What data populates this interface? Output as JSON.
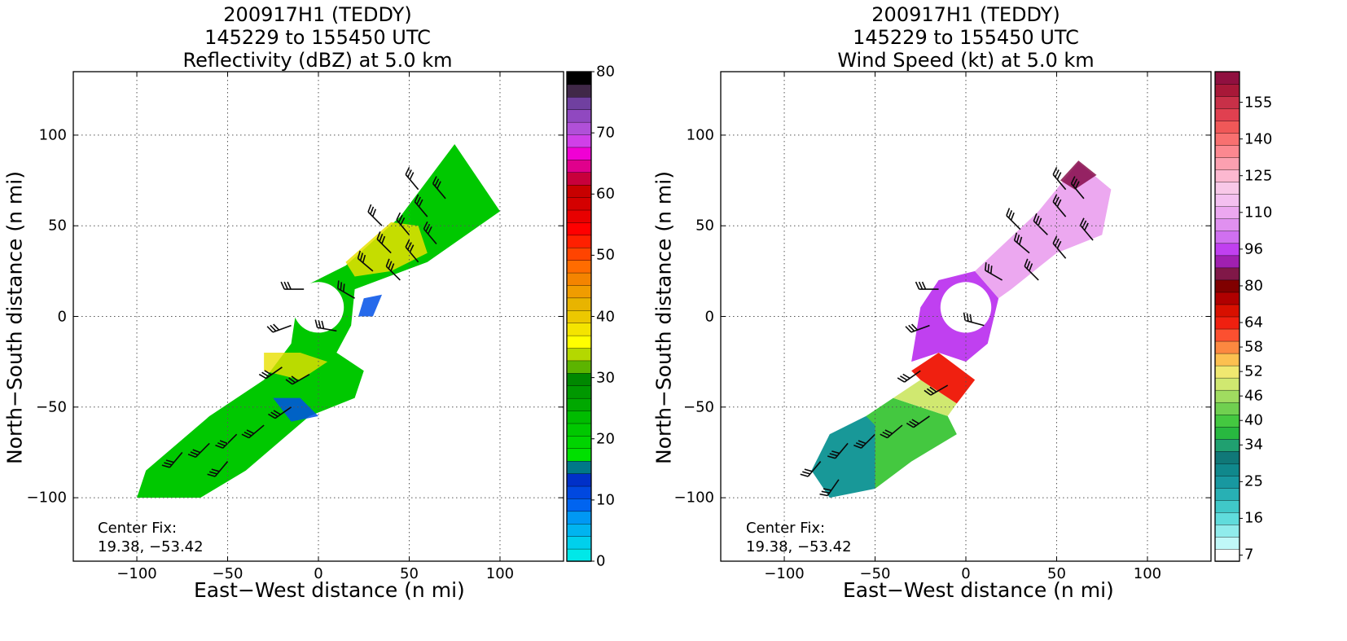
{
  "chart_data": [
    {
      "type": "heatmap",
      "title": [
        "200917H1 (TEDDY)",
        "145229 to 155450 UTC",
        "Reflectivity (dBZ) at 5.0 km"
      ],
      "xlabel": "East-West distance (n mi)",
      "ylabel": "North-South distance (n mi)",
      "xlim": [
        -135,
        135
      ],
      "ylim": [
        -135,
        135
      ],
      "xticks": [
        -100,
        -50,
        0,
        50,
        100
      ],
      "yticks": [
        -100,
        -50,
        0,
        50,
        100
      ],
      "grid": true,
      "annotation": [
        "Center Fix:",
        "19.38, -53.42"
      ],
      "colorbar": {
        "range": [
          0,
          80
        ],
        "tick_values": [
          0,
          10,
          20,
          30,
          40,
          50,
          60,
          70,
          80
        ],
        "tick_labels": [
          "0",
          "10",
          "20",
          "30",
          "40",
          "50",
          "60",
          "70",
          "80"
        ],
        "colors": [
          "#00e8e8",
          "#00d0ec",
          "#00b4f0",
          "#0098f4",
          "#0064f0",
          "#0048e0",
          "#0030c8",
          "#007888",
          "#00e000",
          "#00d400",
          "#00c800",
          "#00bc00",
          "#00a800",
          "#009800",
          "#008800",
          "#5cb400",
          "#b4d800",
          "#ffff00",
          "#f4e400",
          "#ecc800",
          "#e8b400",
          "#f09c00",
          "#f48400",
          "#ff6c00",
          "#ff4400",
          "#ff2000",
          "#ff0000",
          "#e80000",
          "#d40000",
          "#c80000",
          "#c8003c",
          "#e0008c",
          "#f000d4",
          "#d040e8",
          "#b050d8",
          "#9048c0",
          "#7040a0",
          "#402848",
          "#000000"
        ]
      },
      "annotation_colors": {
        "arm": "#0a0a0a"
      }
    },
    {
      "type": "heatmap",
      "title": [
        "200917H1 (TEDDY)",
        "145229 to 155450 UTC",
        "Wind Speed (kt) at 5.0 km"
      ],
      "xlabel": "East-West distance (n mi)",
      "ylabel": "North-South distance (n mi)",
      "xlim": [
        -135,
        135
      ],
      "ylim": [
        -135,
        135
      ],
      "xticks": [
        -100,
        -50,
        0,
        50,
        100
      ],
      "yticks": [
        -100,
        -50,
        0,
        50,
        100
      ],
      "grid": true,
      "annotation": [
        "Center Fix:",
        "19.38, -53.42"
      ],
      "colorbar": {
        "tick_labels": [
          "7",
          "16",
          "25",
          "34",
          "40",
          "46",
          "52",
          "58",
          "64",
          "80",
          "96",
          "110",
          "125",
          "140",
          "155"
        ],
        "tick_band": [
          0,
          3,
          6,
          9,
          11,
          13,
          15,
          17,
          19,
          22,
          25,
          28,
          31,
          34,
          37
        ],
        "colors": [
          "#ffffff",
          "#c0f8f8",
          "#90ecec",
          "#60dcdc",
          "#40c8c8",
          "#28b0b4",
          "#1898a0",
          "#10888c",
          "#107878",
          "#20a070",
          "#28b840",
          "#44c840",
          "#70d050",
          "#a0dc60",
          "#d0e870",
          "#f0e870",
          "#fcc050",
          "#fc8840",
          "#fc5030",
          "#f02010",
          "#d81000",
          "#b00000",
          "#800000",
          "#801848",
          "#a020b0",
          "#c040f0",
          "#d070f0",
          "#e090f0",
          "#eca8f0",
          "#f4c0f0",
          "#f8c8e8",
          "#fcb8d0",
          "#fca0b0",
          "#fc8890",
          "#f87070",
          "#f05858",
          "#e04050",
          "#c83048",
          "#a81838",
          "#901040"
        ]
      }
    }
  ]
}
